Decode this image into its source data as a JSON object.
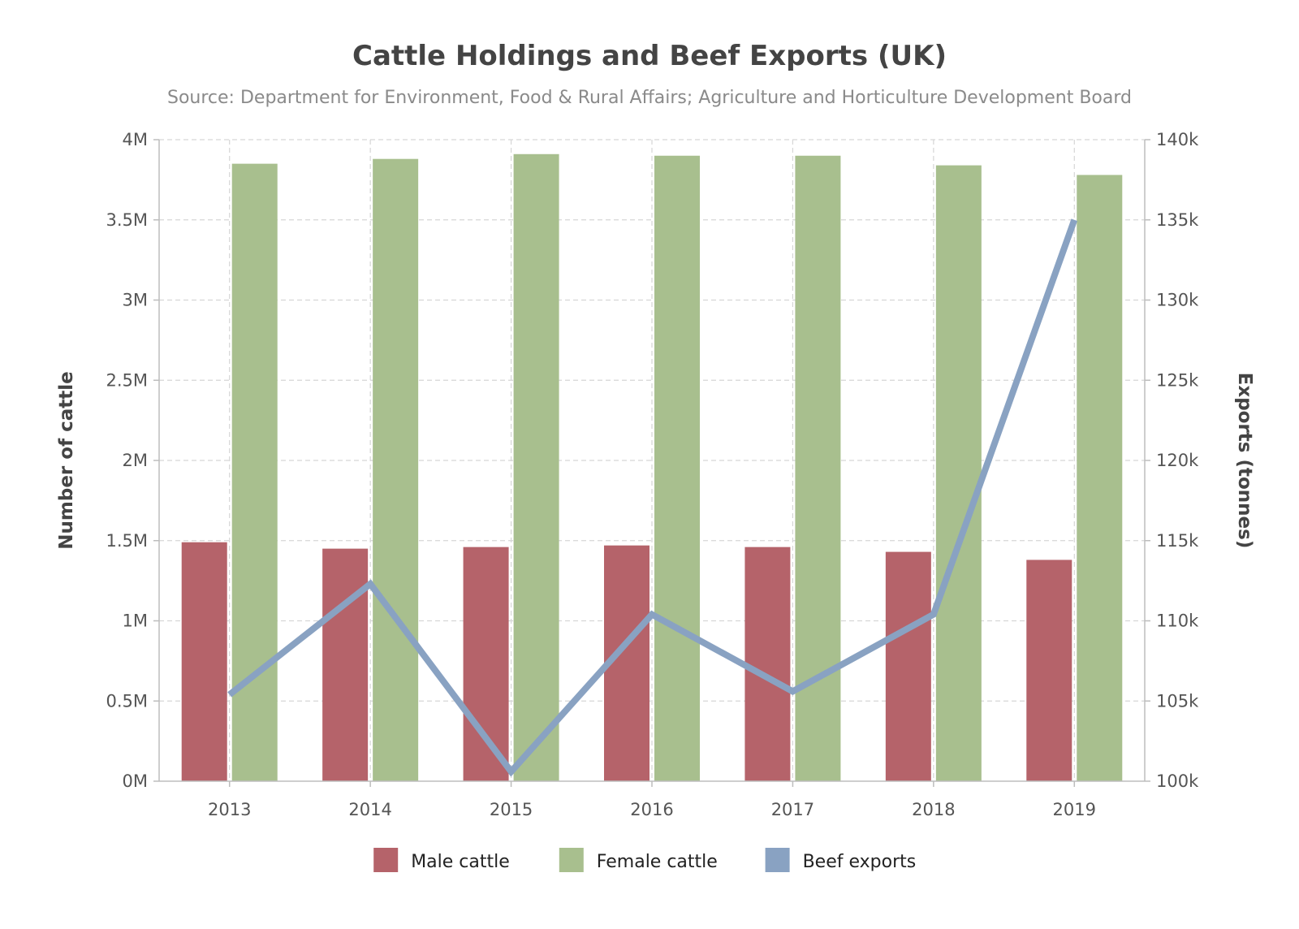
{
  "chart_data": {
    "type": "bar",
    "title": "Cattle Holdings and Beef Exports (UK)",
    "subtitle": "Source: Department for Environment, Food & Rural Affairs; Agriculture and Horticulture Development Board",
    "categories": [
      "2013",
      "2014",
      "2015",
      "2016",
      "2017",
      "2018",
      "2019"
    ],
    "series": [
      {
        "name": "Male cattle",
        "type": "bar",
        "axis": "left",
        "color": "#b5636a",
        "values": [
          1490000,
          1450000,
          1460000,
          1470000,
          1460000,
          1430000,
          1380000
        ]
      },
      {
        "name": "Female cattle",
        "type": "bar",
        "axis": "left",
        "color": "#a8bf8e",
        "values": [
          3850000,
          3880000,
          3910000,
          3900000,
          3900000,
          3840000,
          3780000
        ]
      },
      {
        "name": "Beef exports",
        "type": "line",
        "axis": "right",
        "color": "#89a2c2",
        "values": [
          105400,
          112300,
          100600,
          110400,
          105600,
          110400,
          135000
        ]
      }
    ],
    "y_left": {
      "label": "Number of cattle",
      "range": [
        0,
        4000000
      ],
      "ticks": [
        0,
        500000,
        1000000,
        1500000,
        2000000,
        2500000,
        3000000,
        3500000,
        4000000
      ],
      "tick_labels": [
        "0M",
        "0.5M",
        "1M",
        "1.5M",
        "2M",
        "2.5M",
        "3M",
        "3.5M",
        "4M"
      ]
    },
    "y_right": {
      "label": "Exports (tonnes)",
      "range": [
        100000,
        140000
      ],
      "ticks": [
        100000,
        105000,
        110000,
        115000,
        120000,
        125000,
        130000,
        135000,
        140000
      ],
      "tick_labels": [
        "100k",
        "105k",
        "110k",
        "115k",
        "120k",
        "125k",
        "130k",
        "135k",
        "140k"
      ]
    },
    "grid": true,
    "legend_position": "bottom"
  }
}
